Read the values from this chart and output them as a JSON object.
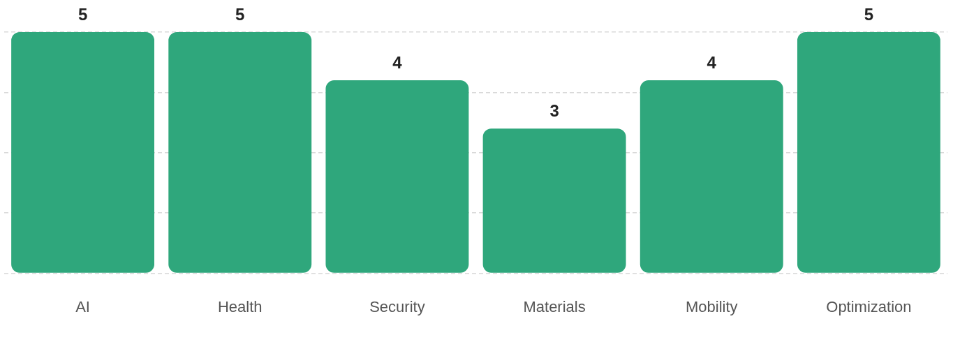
{
  "chart_data": {
    "type": "bar",
    "categories": [
      "AI",
      "Health",
      "Security",
      "Materials",
      "Mobility",
      "Optimization"
    ],
    "values": [
      5,
      5,
      4,
      3,
      4,
      5
    ],
    "color": "#2fa77c",
    "data_labels": true,
    "ylim": [
      0,
      5
    ],
    "yticks": [
      {
        "value": 0,
        "label": null
      },
      {
        "value": 1.25,
        "label": null
      },
      {
        "value": 2.5,
        "label": null
      },
      {
        "value": 3.75,
        "label": null
      },
      {
        "value": 5,
        "label": null
      }
    ],
    "grid": "y",
    "tick_labels": "x",
    "legend": false
  }
}
